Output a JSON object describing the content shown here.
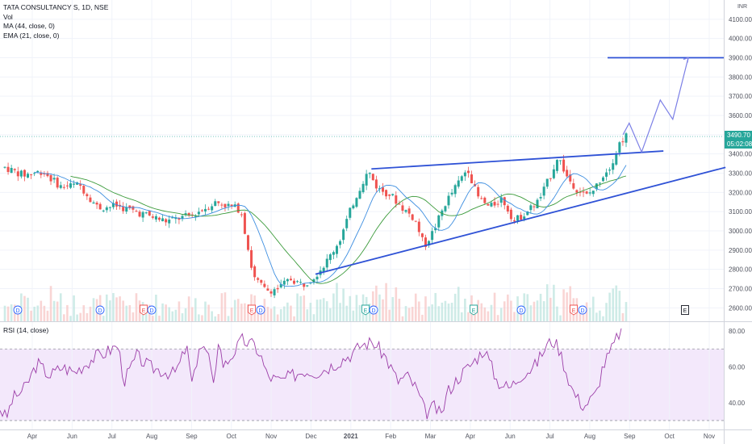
{
  "legend": {
    "symbol": "TATA CONSULTANCY S, 1D, NSE",
    "vol": "Vol",
    "ma": "MA (44, close, 0)",
    "ema": "EMA (21, close, 0)"
  },
  "rsi_legend": "RSI (14, close)",
  "currency": "INR",
  "last_price": "3490.70",
  "countdown": "05:02:08",
  "colors": {
    "up": "#26a69a",
    "down": "#ef5350",
    "drawing": "#2f52d6",
    "arrow": "#7b7fe6",
    "ma": "#3a9a3a",
    "ema": "#3d8ee0",
    "rsi": "#9c3ea8",
    "rsi_band": "#f3e8fb"
  },
  "events": [
    "D",
    "D",
    "E",
    "D",
    "E",
    "D",
    "E",
    "D",
    "E",
    "D",
    "E",
    "D",
    "E"
  ],
  "chart_data": [
    {
      "type": "candlestick",
      "title": "TATA CONSULTANCY S, 1D, NSE",
      "y_ticks": [
        2600,
        2700,
        2800,
        2900,
        3000,
        3100,
        3200,
        3300,
        3400,
        3500,
        3600,
        3700,
        3800,
        3900,
        4000,
        4100
      ],
      "x_ticks": [
        "Apr",
        "Jun",
        "Jul",
        "Aug",
        "Sep",
        "Oct",
        "Nov",
        "Dec",
        "2021",
        "Feb",
        "Mar",
        "Apr",
        "Jun",
        "Jul",
        "Aug",
        "Sep",
        "Oct",
        "Nov"
      ],
      "ylim": [
        2530,
        4200
      ],
      "last_price": 3490.7,
      "projection_level": 3900,
      "path_points": [
        [
          0.0,
          3330
        ],
        [
          0.03,
          3290
        ],
        [
          0.06,
          3310
        ],
        [
          0.09,
          3230
        ],
        [
          0.12,
          3240
        ],
        [
          0.15,
          3120
        ],
        [
          0.18,
          3130
        ],
        [
          0.22,
          3090
        ],
        [
          0.26,
          3050
        ],
        [
          0.3,
          3080
        ],
        [
          0.34,
          3150
        ],
        [
          0.38,
          3110
        ],
        [
          0.4,
          2760
        ],
        [
          0.42,
          2690
        ],
        [
          0.44,
          2700
        ],
        [
          0.46,
          2750
        ],
        [
          0.48,
          2720
        ],
        [
          0.5,
          2770
        ],
        [
          0.52,
          2850
        ],
        [
          0.54,
          2960
        ],
        [
          0.56,
          3140
        ],
        [
          0.575,
          3250
        ],
        [
          0.585,
          3310
        ],
        [
          0.6,
          3220
        ],
        [
          0.62,
          3190
        ],
        [
          0.64,
          3120
        ],
        [
          0.66,
          3060
        ],
        [
          0.675,
          2920
        ],
        [
          0.69,
          3000
        ],
        [
          0.71,
          3150
        ],
        [
          0.73,
          3250
        ],
        [
          0.745,
          3330
        ],
        [
          0.76,
          3180
        ],
        [
          0.78,
          3120
        ],
        [
          0.8,
          3170
        ],
        [
          0.82,
          3050
        ],
        [
          0.84,
          3100
        ],
        [
          0.86,
          3160
        ],
        [
          0.88,
          3300
        ],
        [
          0.89,
          3390
        ],
        [
          0.905,
          3280
        ],
        [
          0.92,
          3220
        ],
        [
          0.935,
          3180
        ],
        [
          0.95,
          3220
        ],
        [
          0.96,
          3280
        ],
        [
          0.975,
          3340
        ],
        [
          0.99,
          3460
        ],
        [
          1.0,
          3495
        ]
      ]
    },
    {
      "type": "line",
      "title": "RSI (14, close)",
      "y_ticks": [
        40,
        60,
        80
      ],
      "ylim": [
        25,
        85
      ],
      "bands": [
        30,
        70
      ],
      "path_points": [
        [
          0.0,
          37
        ],
        [
          0.01,
          31
        ],
        [
          0.02,
          42
        ],
        [
          0.04,
          48
        ],
        [
          0.06,
          62
        ],
        [
          0.08,
          55
        ],
        [
          0.1,
          60
        ],
        [
          0.12,
          57
        ],
        [
          0.15,
          65
        ],
        [
          0.17,
          68
        ],
        [
          0.19,
          72
        ],
        [
          0.2,
          52
        ],
        [
          0.22,
          66
        ],
        [
          0.24,
          60
        ],
        [
          0.26,
          58
        ],
        [
          0.28,
          56
        ],
        [
          0.29,
          62
        ],
        [
          0.3,
          72
        ],
        [
          0.31,
          48
        ],
        [
          0.32,
          72
        ],
        [
          0.335,
          68
        ],
        [
          0.34,
          55
        ],
        [
          0.345,
          46
        ],
        [
          0.35,
          78
        ],
        [
          0.36,
          60
        ],
        [
          0.38,
          70
        ],
        [
          0.39,
          75
        ],
        [
          0.4,
          73
        ],
        [
          0.41,
          72
        ],
        [
          0.42,
          66
        ],
        [
          0.43,
          55
        ],
        [
          0.45,
          52
        ],
        [
          0.47,
          55
        ],
        [
          0.49,
          58
        ],
        [
          0.51,
          57
        ],
        [
          0.53,
          60
        ],
        [
          0.55,
          64
        ],
        [
          0.57,
          68
        ],
        [
          0.58,
          72
        ],
        [
          0.6,
          74
        ],
        [
          0.62,
          66
        ],
        [
          0.64,
          52
        ],
        [
          0.655,
          55
        ],
        [
          0.67,
          48
        ],
        [
          0.685,
          34
        ],
        [
          0.7,
          38
        ],
        [
          0.71,
          32
        ],
        [
          0.72,
          46
        ],
        [
          0.74,
          55
        ],
        [
          0.76,
          62
        ],
        [
          0.78,
          70
        ],
        [
          0.8,
          52
        ],
        [
          0.82,
          48
        ],
        [
          0.84,
          56
        ],
        [
          0.86,
          60
        ],
        [
          0.88,
          72
        ],
        [
          0.89,
          75
        ],
        [
          0.9,
          70
        ],
        [
          0.92,
          48
        ],
        [
          0.93,
          42
        ],
        [
          0.94,
          38
        ],
        [
          0.96,
          45
        ],
        [
          0.97,
          60
        ],
        [
          0.985,
          70
        ],
        [
          0.995,
          78
        ],
        [
          1.0,
          80
        ]
      ]
    }
  ]
}
